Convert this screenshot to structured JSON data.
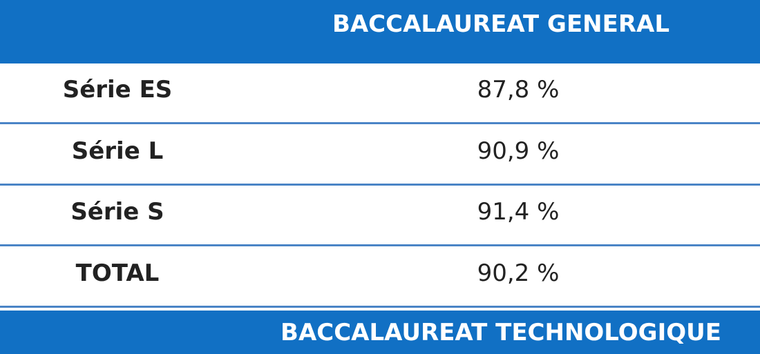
{
  "table": {
    "header": [
      "",
      "BACCALAUREAT GENERAL"
    ],
    "rows": [
      [
        "Série ES",
        "87,8 %"
      ],
      [
        "Série L",
        "90,9 %"
      ],
      [
        "Série S",
        "91,4 %"
      ],
      [
        "TOTAL",
        "90,2 %"
      ]
    ],
    "next_header": [
      "",
      "BACCALAUREAT TECHNOLOGIQUE"
    ]
  }
}
